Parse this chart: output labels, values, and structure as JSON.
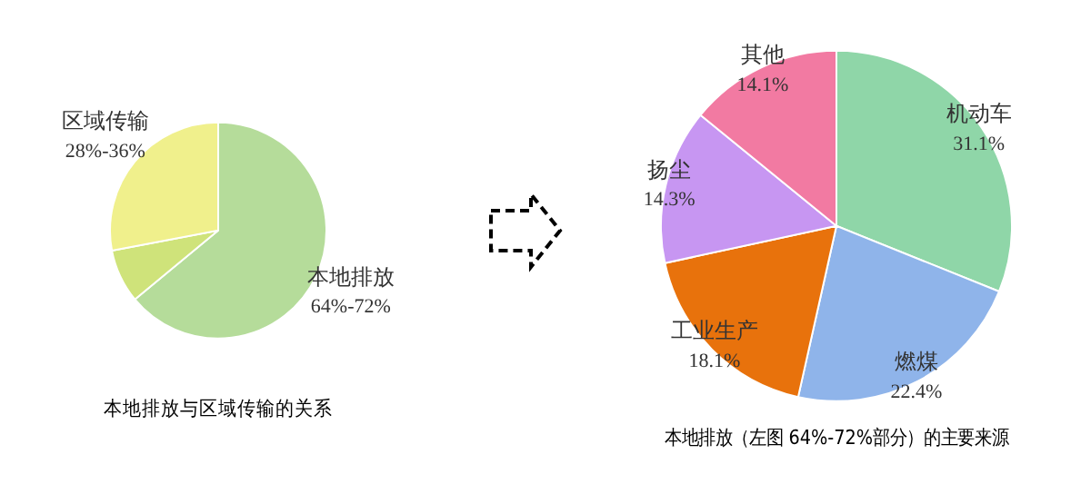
{
  "chart_data": [
    {
      "type": "pie",
      "title": "本地排放与区域传输的关系",
      "categories": [
        "本地排放",
        null,
        "区域传输"
      ],
      "values": [
        64,
        8,
        28
      ],
      "colors": [
        "#b5dc9a",
        "#cfe37a",
        "#f0f08c"
      ],
      "value_labels": [
        "64%-72%",
        null,
        "28%-36%"
      ],
      "legend": false
    },
    {
      "type": "pie",
      "title": "本地排放（左图 64%-72%部分）的主要来源",
      "categories": [
        "机动车",
        "燃煤",
        "工业生产",
        "扬尘",
        "其他"
      ],
      "values": [
        31.1,
        22.4,
        18.1,
        14.3,
        14.1
      ],
      "colors": [
        "#8fd6a8",
        "#8fb4ea",
        "#e8720c",
        "#c796f2",
        "#f27aa2"
      ],
      "value_labels": [
        "31.1%",
        "22.4%",
        "18.1%",
        "14.3%",
        "14.1%"
      ],
      "legend": false
    }
  ]
}
